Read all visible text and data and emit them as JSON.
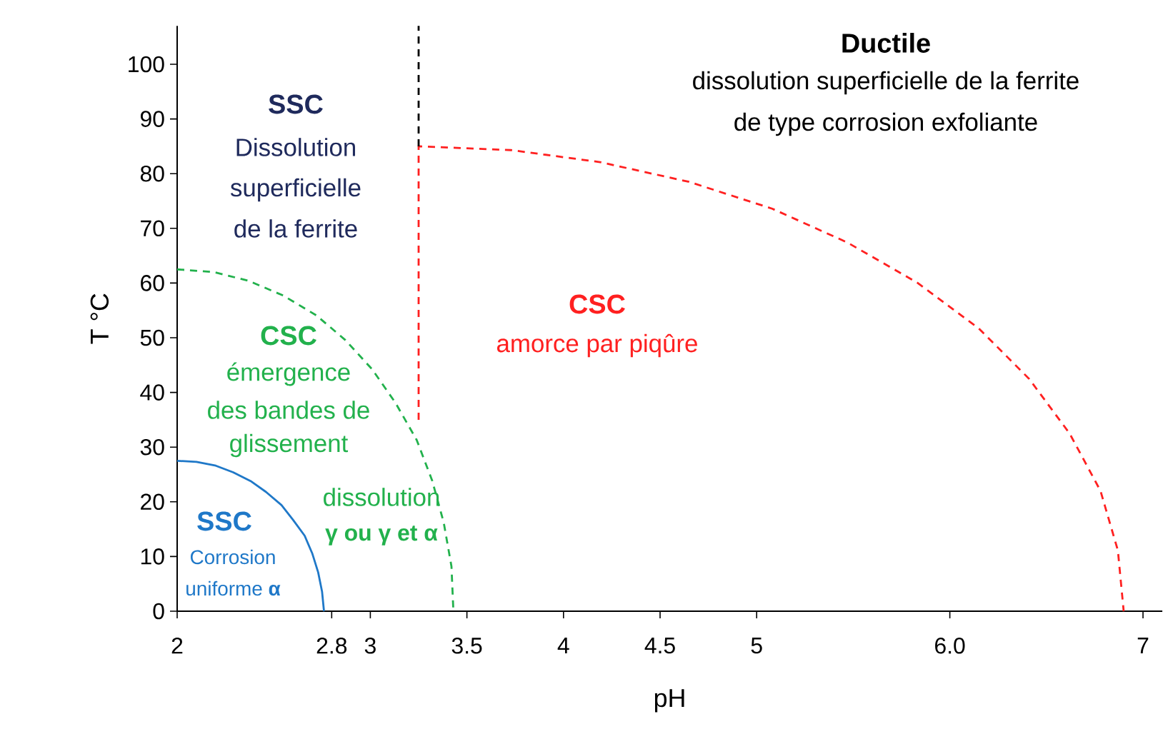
{
  "chart_data": {
    "type": "line",
    "xlabel": "pH",
    "ylabel": "T °C",
    "xlim": [
      2,
      7.1
    ],
    "ylim": [
      0,
      107
    ],
    "xticks": [
      2,
      2.8,
      3,
      3.5,
      4,
      4.5,
      5,
      {
        "value": 6,
        "label": "6.0"
      },
      7
    ],
    "yticks": [
      0,
      10,
      20,
      30,
      40,
      50,
      60,
      70,
      80,
      90,
      100
    ],
    "grid": false,
    "marker": "none",
    "series": [
      {
        "color": "#1f78c8",
        "line_style": "solid",
        "x": [
          2,
          2.1,
          2.2,
          2.29,
          2.38,
          2.46,
          2.54,
          2.6,
          2.66,
          2.7,
          2.73,
          2.75,
          2.76
        ],
        "values": [
          27.5,
          27.3,
          26.6,
          25.4,
          23.8,
          21.8,
          19.4,
          16.7,
          13.8,
          10.5,
          7.1,
          3.6,
          0
        ]
      },
      {
        "color": "#22b14c",
        "line_style": "dashed",
        "x": [
          2,
          2.19,
          2.37,
          2.55,
          2.72,
          2.87,
          3.01,
          3.13,
          3.24,
          3.32,
          3.38,
          3.42,
          3.43
        ],
        "values": [
          62.5,
          62,
          60.4,
          57.7,
          54.1,
          49.6,
          44.2,
          38.1,
          31.3,
          23.9,
          16.2,
          8.2,
          0
        ]
      },
      {
        "color": "#ff2020",
        "line_style": "dashed",
        "x": [
          3.25,
          3.25,
          3.73,
          4.19,
          4.65,
          5.08,
          5.47,
          5.83,
          6.15,
          6.41,
          6.62,
          6.78,
          6.87,
          6.9
        ],
        "values": [
          35,
          85,
          84.3,
          82.1,
          78.5,
          73.6,
          67.4,
          60.1,
          51.7,
          42.5,
          32.5,
          22,
          11.1,
          0
        ]
      },
      {
        "color": "#000000",
        "line_style": "dashed",
        "x": [
          3.25,
          3.25
        ],
        "values": [
          85,
          107
        ]
      }
    ],
    "annotations": [
      "SSC",
      "Dissolution",
      "superficielle",
      "de la ferrite",
      "Ductile",
      "dissolution superficielle de la ferrite",
      "de type corrosion exfoliante",
      "CSC",
      "amorce par piqûre",
      "CSC",
      "émergence",
      "des bandes de",
      "glissement",
      "dissolution",
      "γ ou γ et α",
      "SSC",
      "Corrosion",
      "uniforme **α**"
    ]
  }
}
